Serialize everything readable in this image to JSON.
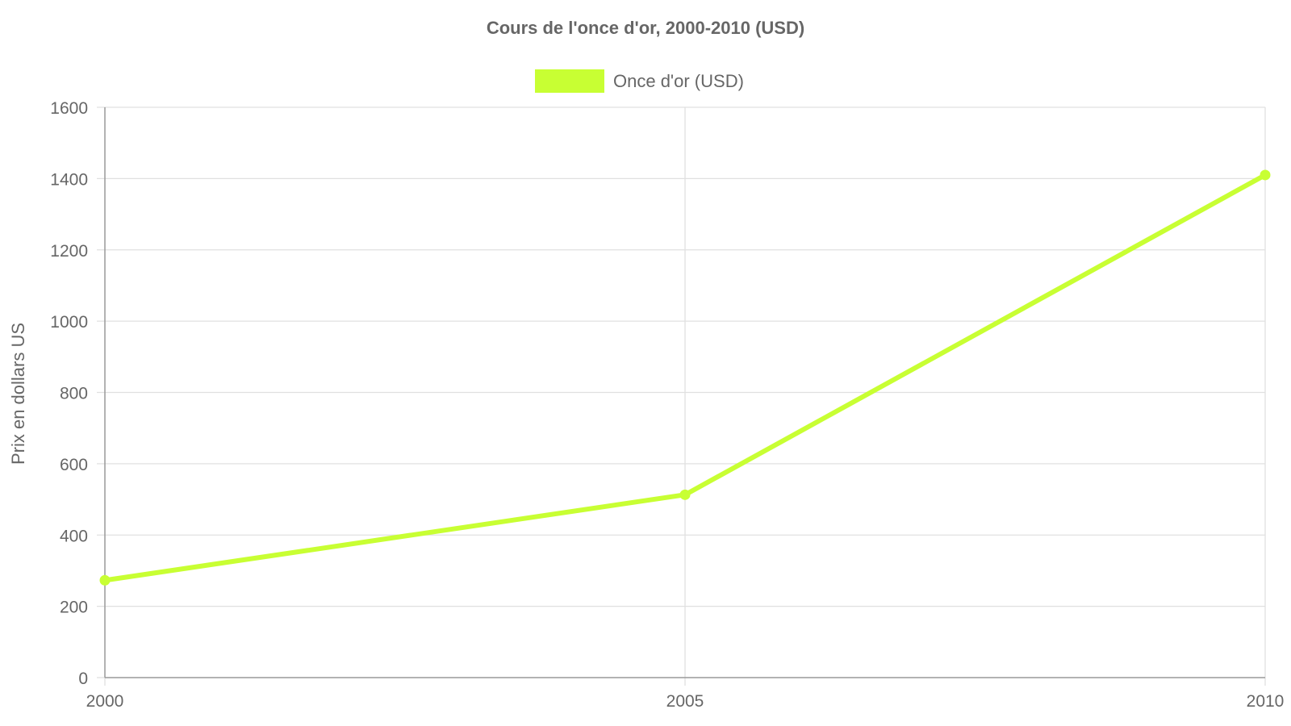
{
  "chart_data": {
    "type": "line",
    "title": "Cours de l'once d'or, 2000-2010 (USD)",
    "xlabel": "",
    "ylabel": "Prix en dollars US",
    "x": [
      "2000",
      "2005",
      "2010"
    ],
    "series": [
      {
        "name": "Once d'or (USD)",
        "values": [
          273,
          513,
          1410
        ],
        "color": "#c8ff33"
      }
    ],
    "ylim": [
      0,
      1600
    ],
    "yticks": [
      0,
      200,
      400,
      600,
      800,
      1000,
      1200,
      1400,
      1600
    ],
    "grid": true,
    "legend_position": "top-center",
    "colors": {
      "text": "#666666",
      "grid": "#e0e0e0",
      "axis": "#999999"
    }
  }
}
